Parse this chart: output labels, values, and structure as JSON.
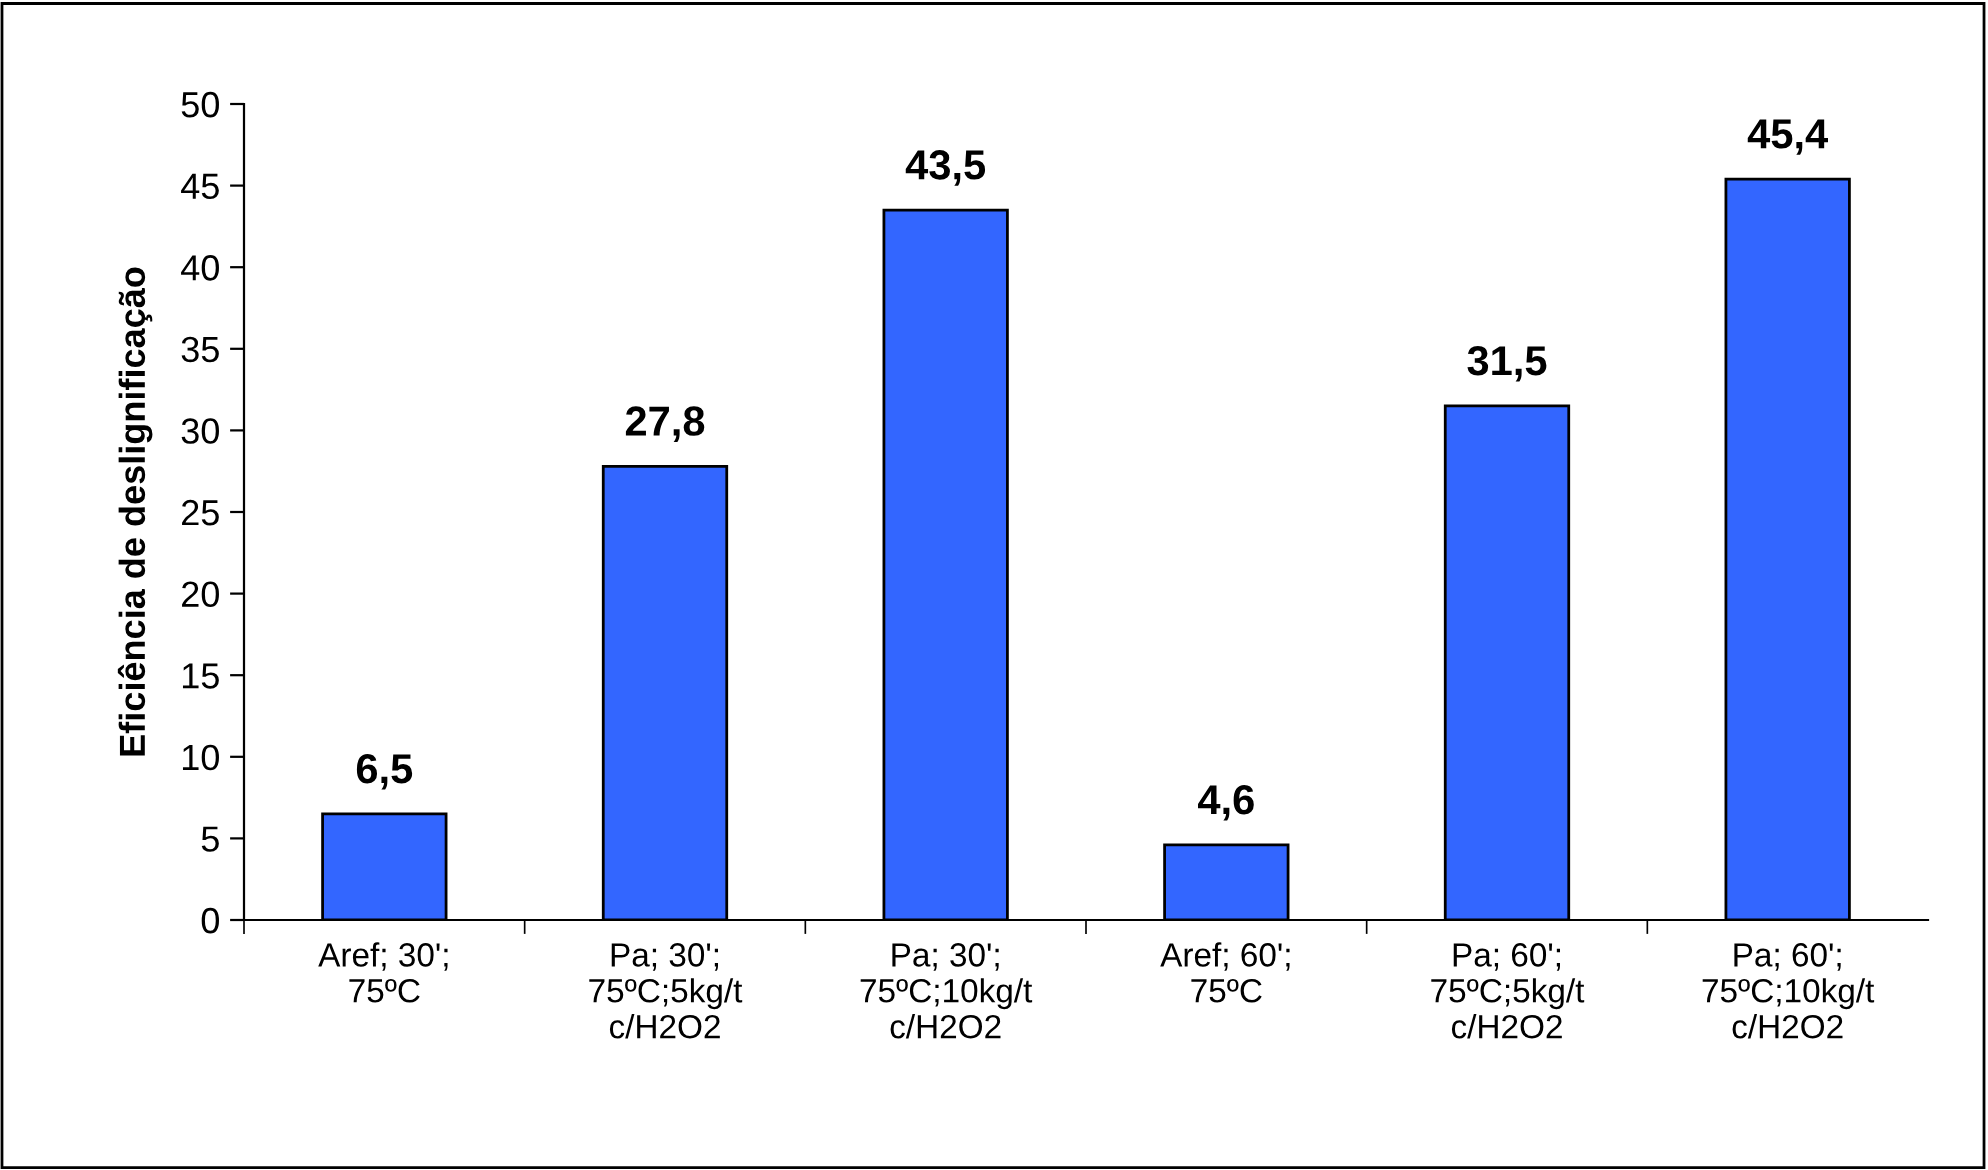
{
  "chart_data": {
    "type": "bar",
    "ylabel": "Eficiência de deslignificação",
    "categories": [
      "Aref; 30';\n75ºC",
      "Pa; 30';\n75ºC;5kg/t\nc/H2O2",
      "Pa; 30';\n75ºC;10kg/t\nc/H2O2",
      "Aref; 60';\n75ºC",
      "Pa; 60';\n75ºC;5kg/t\nc/H2O2",
      "Pa; 60';\n75ºC;10kg/t\nc/H2O2"
    ],
    "values": [
      6.5,
      27.8,
      43.5,
      4.6,
      31.5,
      45.4
    ],
    "value_labels": [
      "6,5",
      "27,8",
      "43,5",
      "4,6",
      "31,5",
      "45,4"
    ],
    "color": "#3366ff",
    "ylim": [
      0,
      50
    ],
    "yticks": [
      0,
      5,
      10,
      15,
      20,
      25,
      30,
      35,
      40,
      45,
      50
    ],
    "grid": false,
    "legend": false
  }
}
